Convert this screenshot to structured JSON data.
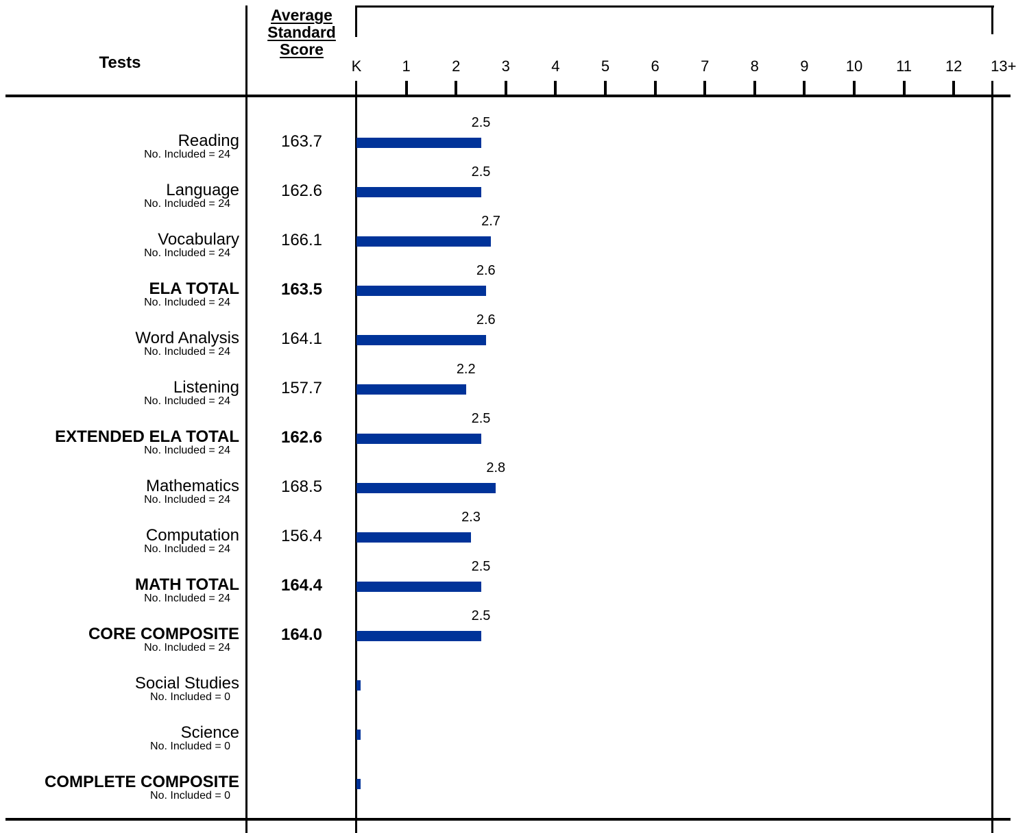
{
  "header": {
    "tests_label": "Tests",
    "score_label_lines": [
      "Average",
      "Standard",
      "Score"
    ]
  },
  "chart_data": {
    "type": "bar",
    "orientation": "horizontal",
    "title": "",
    "xlabel": "",
    "ylabel": "",
    "xlim": [
      0,
      13
    ],
    "x_ticks": [
      "K",
      "1",
      "2",
      "3",
      "4",
      "5",
      "6",
      "7",
      "8",
      "9",
      "10",
      "11",
      "12",
      "13+"
    ],
    "bar_color": "#003399",
    "grid": false,
    "categories": [
      "Reading",
      "Language",
      "Vocabulary",
      "ELA TOTAL",
      "Word Analysis",
      "Listening",
      "EXTENDED ELA TOTAL",
      "Mathematics",
      "Computation",
      "MATH TOTAL",
      "CORE COMPOSITE",
      "Social Studies",
      "Science",
      "COMPLETE COMPOSITE"
    ],
    "values": [
      2.5,
      2.5,
      2.7,
      2.6,
      2.6,
      2.2,
      2.5,
      2.8,
      2.3,
      2.5,
      2.5,
      null,
      null,
      null
    ],
    "value_labels": [
      "2.5",
      "2.5",
      "2.7",
      "2.6",
      "2.6",
      "2.2",
      "2.5",
      "2.8",
      "2.3",
      "2.5",
      "2.5",
      "",
      "",
      ""
    ],
    "average_standard_scores": [
      "163.7",
      "162.6",
      "166.1",
      "163.5",
      "164.1",
      "157.7",
      "162.6",
      "168.5",
      "156.4",
      "164.4",
      "164.0",
      "",
      "",
      ""
    ],
    "n_included": [
      "No. Included = 24",
      "No. Included = 24",
      "No. Included = 24",
      "No. Included = 24",
      "No. Included = 24",
      "No. Included = 24",
      "No. Included = 24",
      "No. Included = 24",
      "No. Included = 24",
      "No. Included = 24",
      "No. Included = 24",
      "No. Included = 0",
      "No. Included = 0",
      "No. Included = 0"
    ],
    "bold_rows": [
      false,
      false,
      false,
      true,
      false,
      false,
      true,
      false,
      false,
      true,
      true,
      false,
      false,
      true
    ]
  }
}
